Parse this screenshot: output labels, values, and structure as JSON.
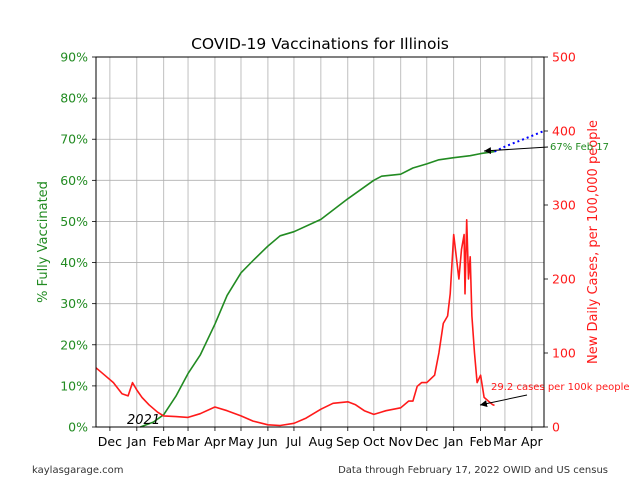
{
  "footer": {
    "source": "kaylasgarage.com",
    "note": "Data through February 17, 2022 OWID and US census"
  },
  "colors": {
    "vaccinated": "#228b22",
    "cases": "#ff1a1a",
    "projection": "#0000ff",
    "grid": "#b0b0b0",
    "annotation": "#000000"
  },
  "chart_data": {
    "type": "line",
    "title": "COVID-19 Vaccinations for Illinois",
    "x_axis": {
      "tick_labels": [
        "Dec",
        "Jan",
        "Feb",
        "Mar",
        "Apr",
        "May",
        "Jun",
        "Jul",
        "Aug",
        "Sep",
        "Oct",
        "Nov",
        "Dec",
        "Jan",
        "Feb",
        "Mar",
        "Apr"
      ],
      "tick_dates": [
        "2020-12-01",
        "2021-01-01",
        "2021-02-01",
        "2021-03-01",
        "2021-04-01",
        "2021-05-01",
        "2021-06-01",
        "2021-07-01",
        "2021-08-01",
        "2021-09-01",
        "2021-10-01",
        "2021-11-01",
        "2021-12-01",
        "2022-01-01",
        "2022-02-01",
        "2022-03-01",
        "2022-04-01"
      ],
      "range": [
        "2020-11-15",
        "2022-04-15"
      ],
      "grid": true
    },
    "y_left": {
      "label": "% Fully Vaccinated",
      "range": [
        0,
        90
      ],
      "ticks": [
        0,
        10,
        20,
        30,
        40,
        50,
        60,
        70,
        80,
        90
      ],
      "tick_labels": [
        "0%",
        "10%",
        "20%",
        "30%",
        "40%",
        "50%",
        "60%",
        "70%",
        "80%",
        "90%"
      ],
      "grid": true
    },
    "y_right": {
      "label": "New Daily Cases, per 100,000 people",
      "range": [
        0,
        500
      ],
      "ticks": [
        0,
        100,
        200,
        300,
        400,
        500
      ],
      "tick_labels": [
        "0",
        "100",
        "200",
        "300",
        "400",
        "500"
      ]
    },
    "series": [
      {
        "axis": "left",
        "style": "solid",
        "x": [
          "2021-01-05",
          "2021-01-20",
          "2021-02-01",
          "2021-02-15",
          "2021-03-01",
          "2021-03-15",
          "2021-04-01",
          "2021-04-15",
          "2021-05-01",
          "2021-05-15",
          "2021-06-01",
          "2021-06-15",
          "2021-07-01",
          "2021-08-01",
          "2021-09-01",
          "2021-10-01",
          "2021-10-10",
          "2021-11-01",
          "2021-11-15",
          "2021-12-01",
          "2021-12-15",
          "2022-01-01",
          "2022-01-20",
          "2022-02-01",
          "2022-02-17"
        ],
        "y": [
          0,
          1.2,
          3,
          7.5,
          13,
          17.5,
          25,
          32,
          37.5,
          40.5,
          44,
          46.5,
          47.5,
          50.5,
          55.5,
          60,
          61,
          61.5,
          63,
          64,
          65,
          65.5,
          66,
          66.5,
          67
        ]
      },
      {
        "axis": "left",
        "style": "dotted",
        "x": [
          "2022-02-17",
          "2022-03-01",
          "2022-04-01",
          "2022-04-15"
        ],
        "y": [
          67,
          68.2,
          70.8,
          72
        ]
      },
      {
        "axis": "right",
        "style": "solid",
        "x": [
          "2020-11-15",
          "2020-11-25",
          "2020-12-05",
          "2020-12-15",
          "2020-12-22",
          "2020-12-27",
          "2021-01-01",
          "2021-01-07",
          "2021-01-15",
          "2021-01-25",
          "2021-02-01",
          "2021-02-15",
          "2021-03-01",
          "2021-03-15",
          "2021-04-01",
          "2021-04-15",
          "2021-05-01",
          "2021-05-15",
          "2021-06-01",
          "2021-06-15",
          "2021-07-01",
          "2021-07-15",
          "2021-08-01",
          "2021-08-15",
          "2021-09-01",
          "2021-09-10",
          "2021-09-20",
          "2021-10-01",
          "2021-10-15",
          "2021-11-01",
          "2021-11-10",
          "2021-11-15",
          "2021-11-20",
          "2021-11-25",
          "2021-12-01",
          "2021-12-10",
          "2021-12-15",
          "2021-12-20",
          "2021-12-25",
          "2021-12-28",
          "2022-01-01",
          "2022-01-04",
          "2022-01-07",
          "2022-01-10",
          "2022-01-13",
          "2022-01-14",
          "2022-01-16",
          "2022-01-18",
          "2022-01-20",
          "2022-01-22",
          "2022-01-25",
          "2022-01-28",
          "2022-02-01",
          "2022-02-05",
          "2022-02-10",
          "2022-02-15",
          "2022-02-17"
        ],
        "y": [
          80,
          70,
          60,
          45,
          42,
          60,
          50,
          40,
          30,
          20,
          15,
          14,
          13,
          18,
          27,
          22,
          15,
          8,
          3,
          2,
          5,
          12,
          24,
          32,
          34,
          30,
          22,
          17,
          22,
          26,
          35,
          35,
          55,
          60,
          60,
          70,
          100,
          140,
          150,
          180,
          260,
          230,
          200,
          240,
          260,
          180,
          280,
          200,
          230,
          150,
          100,
          60,
          70,
          40,
          35,
          30,
          29.2
        ]
      }
    ],
    "annotations": [
      {
        "text": "67% Feb 17"
      },
      {
        "text": "29.2 cases per 100k people"
      },
      {
        "text": "2021"
      }
    ]
  }
}
